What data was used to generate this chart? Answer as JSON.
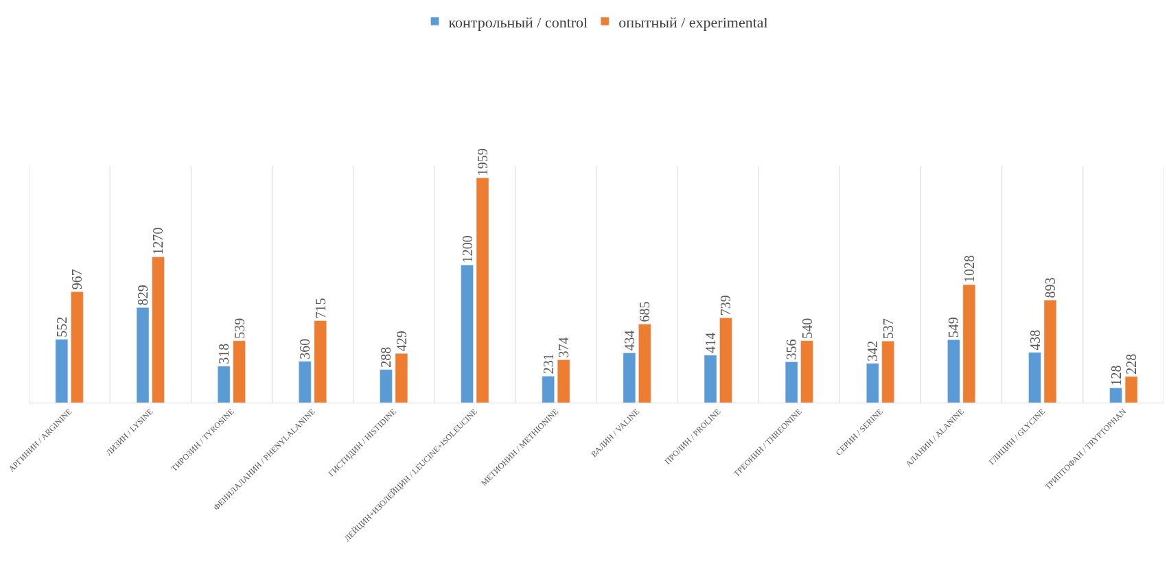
{
  "chart_data": {
    "type": "bar",
    "categories": [
      "АРГИНИН / ARGININE",
      "ЛИЗИН / LYSINE",
      "ТИРОЗИН / TYROSINE",
      "ФЕНИЛАЛАНИН / PHENYLALANINE",
      "ГИСТИДИН / HISTIDINE",
      "ЛЕЙЦИН+ИЗОЛЕЙЦИН / LEUCINE+ISOLEUCINE",
      "МЕТИОНИН / METHIONINE",
      "ВАЛИН / VALINE",
      "ПРОЛИН / PROLINE",
      "ТРЕОНИН / THREONINE",
      "СЕРИН / SERINE",
      "АЛАНИН / ALANINE",
      "ГЛИЦИН / GLYCINE",
      "ТРИПТОФАН / TRYPTOPHAN"
    ],
    "series": [
      {
        "name": "контрольный / control",
        "color": "#5b9bd5",
        "values": [
          552,
          829,
          318,
          360,
          288,
          1200,
          231,
          434,
          414,
          356,
          342,
          549,
          438,
          128
        ]
      },
      {
        "name": "опытный / experimental",
        "color": "#ed7d31",
        "values": [
          967,
          1270,
          539,
          715,
          429,
          1959,
          374,
          685,
          739,
          540,
          537,
          1028,
          893,
          228
        ]
      }
    ],
    "data_labels": true,
    "grid": "x",
    "legend": "top"
  }
}
